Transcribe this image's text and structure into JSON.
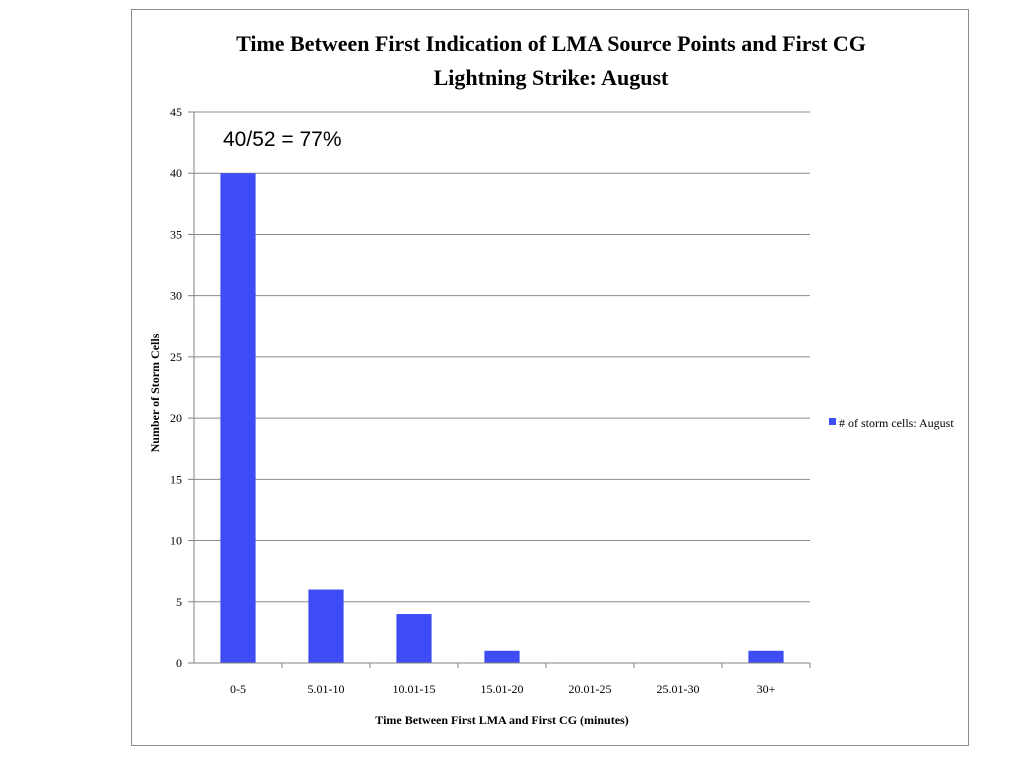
{
  "chart_data": {
    "type": "bar",
    "title_line1": "Time Between First Indication of LMA Source Points and First CG",
    "title_line2": "Lightning Strike: August",
    "xlabel": "Time Between First LMA and First CG (minutes)",
    "ylabel": "Number of Storm Cells",
    "categories": [
      "0-5",
      "5.01-10",
      "10.01-15",
      "15.01-20",
      "20.01-25",
      "25.01-30",
      "30+"
    ],
    "series": [
      {
        "name": "# of storm cells: August",
        "values": [
          40,
          6,
          4,
          1,
          0,
          0,
          1
        ],
        "color": "#3d4cf5"
      }
    ],
    "ylim": [
      0,
      45
    ],
    "yticks": [
      0,
      5,
      10,
      15,
      20,
      25,
      30,
      35,
      40,
      45
    ],
    "grid": true,
    "legend_position": "right",
    "annotation": "40/52 = 77%"
  }
}
